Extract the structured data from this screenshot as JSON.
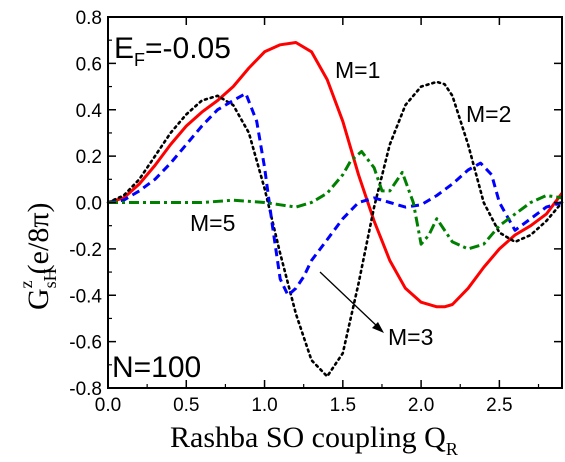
{
  "chart_data": {
    "type": "line",
    "xlabel": "Rashba SO coupling Q",
    "xlabel_sub": "R",
    "ylabel_main": "G",
    "ylabel_sup": "z",
    "ylabel_sub": "sH",
    "ylabel_unit": "(e/8π)",
    "xlim": [
      0.0,
      2.9
    ],
    "ylim": [
      -0.8,
      0.8
    ],
    "xticks": [
      0.0,
      0.5,
      1.0,
      1.5,
      2.0,
      2.5
    ],
    "xtick_labels": [
      "0.0",
      "0.5",
      "1.0",
      "1.5",
      "2.0",
      "2.5"
    ],
    "yticks": [
      -0.8,
      -0.6,
      -0.4,
      -0.2,
      0.0,
      0.2,
      0.4,
      0.6,
      0.8
    ],
    "ytick_labels": [
      "-0.8",
      "-0.6",
      "-0.4",
      "-0.2",
      "0.0",
      "0.2",
      "0.4",
      "0.6",
      "0.8"
    ],
    "grid": false,
    "legend": "none",
    "annotations": {
      "ef_main": "E",
      "ef_sub": "F",
      "ef_value": "=-0.05",
      "n_label": "N=100",
      "m1": "M=1",
      "m2": "M=2",
      "m3": "M=3",
      "m5": "M=5"
    },
    "series": [
      {
        "color": "#ff0000",
        "dash": "solid",
        "x": [
          0.0,
          0.1,
          0.2,
          0.3,
          0.4,
          0.5,
          0.6,
          0.7,
          0.8,
          0.9,
          1.0,
          1.1,
          1.2,
          1.3,
          1.4,
          1.5,
          1.6,
          1.7,
          1.8,
          1.9,
          2.0,
          2.1,
          2.15,
          2.2,
          2.3,
          2.4,
          2.5,
          2.6,
          2.7,
          2.8,
          2.9
        ],
        "y": [
          0.0,
          0.02,
          0.08,
          0.16,
          0.25,
          0.33,
          0.39,
          0.44,
          0.5,
          0.58,
          0.65,
          0.68,
          0.69,
          0.65,
          0.53,
          0.35,
          0.12,
          -0.08,
          -0.25,
          -0.37,
          -0.43,
          -0.45,
          -0.45,
          -0.44,
          -0.37,
          -0.28,
          -0.2,
          -0.14,
          -0.1,
          -0.05,
          0.04
        ]
      },
      {
        "color": "#000000",
        "dash": "dotted",
        "x": [
          0.0,
          0.1,
          0.2,
          0.3,
          0.4,
          0.5,
          0.6,
          0.7,
          0.8,
          0.9,
          1.0,
          1.1,
          1.2,
          1.3,
          1.4,
          1.5,
          1.6,
          1.7,
          1.8,
          1.9,
          2.0,
          2.1,
          2.15,
          2.2,
          2.3,
          2.4,
          2.5,
          2.6,
          2.7,
          2.8,
          2.9
        ],
        "y": [
          0.0,
          0.03,
          0.1,
          0.2,
          0.3,
          0.38,
          0.44,
          0.46,
          0.42,
          0.3,
          0.06,
          -0.22,
          -0.48,
          -0.68,
          -0.75,
          -0.65,
          -0.35,
          -0.02,
          0.25,
          0.42,
          0.5,
          0.52,
          0.51,
          0.46,
          0.25,
          0.0,
          -0.13,
          -0.17,
          -0.14,
          -0.08,
          0.0
        ]
      },
      {
        "color": "#0000ff",
        "dash": "dashed",
        "x": [
          0.0,
          0.1,
          0.2,
          0.3,
          0.4,
          0.5,
          0.6,
          0.7,
          0.8,
          0.88,
          0.95,
          1.0,
          1.05,
          1.1,
          1.15,
          1.2,
          1.25,
          1.3,
          1.4,
          1.5,
          1.6,
          1.7,
          1.8,
          1.9,
          2.0,
          2.1,
          2.2,
          2.3,
          2.38,
          2.45,
          2.5,
          2.6,
          2.7,
          2.8,
          2.9
        ],
        "y": [
          0.0,
          0.01,
          0.05,
          0.1,
          0.17,
          0.25,
          0.33,
          0.4,
          0.44,
          0.47,
          0.35,
          0.15,
          -0.1,
          -0.33,
          -0.4,
          -0.37,
          -0.32,
          -0.25,
          -0.16,
          -0.07,
          0.0,
          0.02,
          0.0,
          -0.02,
          -0.01,
          0.03,
          0.08,
          0.14,
          0.17,
          0.12,
          0.0,
          -0.12,
          -0.07,
          -0.02,
          0.0
        ]
      },
      {
        "color": "#008000",
        "dash": "dashdot",
        "x": [
          0.0,
          0.2,
          0.4,
          0.6,
          0.8,
          1.0,
          1.1,
          1.2,
          1.3,
          1.4,
          1.5,
          1.55,
          1.62,
          1.7,
          1.75,
          1.8,
          1.88,
          1.95,
          2.0,
          2.05,
          2.1,
          2.2,
          2.3,
          2.4,
          2.5,
          2.6,
          2.7,
          2.8,
          2.9
        ],
        "y": [
          0.0,
          0.0,
          0.0,
          0.0,
          0.01,
          0.0,
          -0.01,
          -0.02,
          0.0,
          0.04,
          0.12,
          0.18,
          0.22,
          0.15,
          0.05,
          0.05,
          0.13,
          0.0,
          -0.18,
          -0.14,
          -0.07,
          -0.17,
          -0.2,
          -0.18,
          -0.1,
          -0.05,
          0.0,
          0.03,
          0.02
        ]
      }
    ]
  }
}
